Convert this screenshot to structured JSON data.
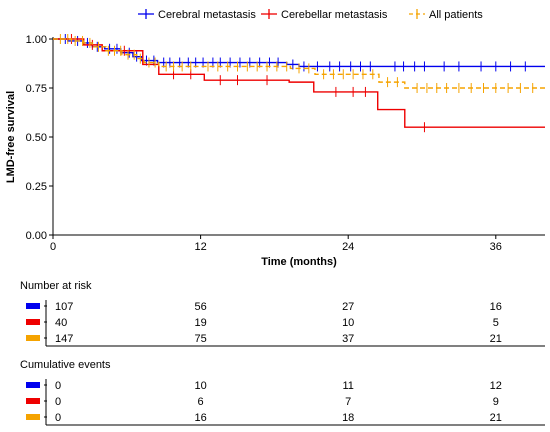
{
  "legend": {
    "items": [
      {
        "label": "Cerebral metastasis",
        "color": "#0000ee",
        "style": "solid"
      },
      {
        "label": "Cerebellar metastasis",
        "color": "#ee0000",
        "style": "solid"
      },
      {
        "label": "All patients",
        "color": "#f5a300",
        "style": "dashed"
      }
    ]
  },
  "chart_data": {
    "type": "line",
    "subtype": "kaplan-meier",
    "xlabel": "Time (months)",
    "ylabel": "LMD-free survival",
    "xlim": [
      0,
      40
    ],
    "ylim": [
      0,
      1
    ],
    "xticks": [
      0,
      12,
      24,
      36
    ],
    "xtick_labels": [
      "0",
      "12",
      "24",
      "36"
    ],
    "yticks": [
      0,
      0.25,
      0.5,
      0.75,
      1
    ],
    "ytick_labels": [
      "0.00",
      "0.25",
      "0.50",
      "0.75",
      "1.00"
    ],
    "grid": false,
    "legend_position": "top",
    "series": [
      {
        "name": "Cerebral metastasis",
        "color": "#0000ee",
        "dashed": false,
        "steps": [
          [
            0,
            1.0
          ],
          [
            1.2,
            0.99
          ],
          [
            2.5,
            0.98
          ],
          [
            3.2,
            0.96
          ],
          [
            4.2,
            0.95
          ],
          [
            5.5,
            0.93
          ],
          [
            6.5,
            0.91
          ],
          [
            7.2,
            0.89
          ],
          [
            8.5,
            0.88
          ],
          [
            19.0,
            0.87
          ],
          [
            20.0,
            0.86
          ],
          [
            40,
            0.86
          ]
        ],
        "censor": [
          1.0,
          2.0,
          2.8,
          3.6,
          4.6,
          5.2,
          6.2,
          6.8,
          7.6,
          8.2,
          9.0,
          9.5,
          10.3,
          11.0,
          11.6,
          12.2,
          13.0,
          13.6,
          14.4,
          15.2,
          16.0,
          16.8,
          17.6,
          18.3,
          19.5,
          20.4,
          21.5,
          22.5,
          23.3,
          24.2,
          25.0,
          25.8,
          27.8,
          28.5,
          29.4,
          30.2,
          31.8,
          33.0,
          34.8,
          36.0,
          37.2,
          38.4
        ]
      },
      {
        "name": "Cerebellar metastasis",
        "color": "#ee0000",
        "dashed": false,
        "steps": [
          [
            0,
            1.0
          ],
          [
            2.5,
            0.97
          ],
          [
            4.0,
            0.94
          ],
          [
            7.3,
            0.87
          ],
          [
            8.6,
            0.82
          ],
          [
            12.3,
            0.79
          ],
          [
            19.2,
            0.78
          ],
          [
            21.2,
            0.73
          ],
          [
            26.4,
            0.64
          ],
          [
            28.6,
            0.55
          ],
          [
            40,
            0.55
          ]
        ],
        "censor": [
          1.5,
          3.2,
          5.8,
          9.8,
          11.2,
          13.6,
          15.0,
          17.4,
          23.0,
          24.4,
          25.4,
          30.2
        ]
      },
      {
        "name": "All patients",
        "color": "#f5a300",
        "dashed": true,
        "steps": [
          [
            0,
            1.0
          ],
          [
            1.5,
            0.99
          ],
          [
            2.5,
            0.98
          ],
          [
            3.2,
            0.96
          ],
          [
            4.3,
            0.94
          ],
          [
            5.6,
            0.92
          ],
          [
            6.8,
            0.9
          ],
          [
            7.4,
            0.88
          ],
          [
            8.6,
            0.86
          ],
          [
            19.3,
            0.85
          ],
          [
            21.3,
            0.82
          ],
          [
            26.5,
            0.78
          ],
          [
            28.6,
            0.75
          ],
          [
            40,
            0.75
          ]
        ],
        "censor": [
          0.6,
          1.2,
          1.8,
          2.4,
          3.0,
          3.7,
          4.5,
          5.0,
          5.5,
          6.1,
          6.6,
          7.1,
          7.8,
          8.3,
          9.2,
          9.8,
          10.5,
          11.2,
          12.6,
          13.4,
          14.2,
          15.0,
          15.8,
          16.6,
          17.4,
          18.2,
          19.0,
          20.0,
          20.8,
          22.0,
          22.8,
          23.6,
          24.4,
          25.2,
          26.0,
          27.2,
          28.0,
          29.6,
          30.4,
          31.2,
          32.0,
          33.0,
          34.0,
          35.0,
          36.0,
          37.0,
          38.0,
          39.0
        ]
      }
    ]
  },
  "risk_table": {
    "title": "Number at risk",
    "time_points": [
      0,
      12,
      24,
      36
    ],
    "rows": [
      {
        "color": "#0000ee",
        "values": [
          "107",
          "56",
          "27",
          "16"
        ]
      },
      {
        "color": "#ee0000",
        "values": [
          "40",
          "19",
          "10",
          "5"
        ]
      },
      {
        "color": "#f5a300",
        "values": [
          "147",
          "75",
          "37",
          "21"
        ]
      }
    ]
  },
  "events_table": {
    "title": "Cumulative events",
    "time_points": [
      0,
      12,
      24,
      36
    ],
    "rows": [
      {
        "color": "#0000ee",
        "values": [
          "0",
          "10",
          "11",
          "12"
        ]
      },
      {
        "color": "#ee0000",
        "values": [
          "0",
          "6",
          "7",
          "9"
        ]
      },
      {
        "color": "#f5a300",
        "values": [
          "0",
          "16",
          "18",
          "21"
        ]
      }
    ]
  }
}
